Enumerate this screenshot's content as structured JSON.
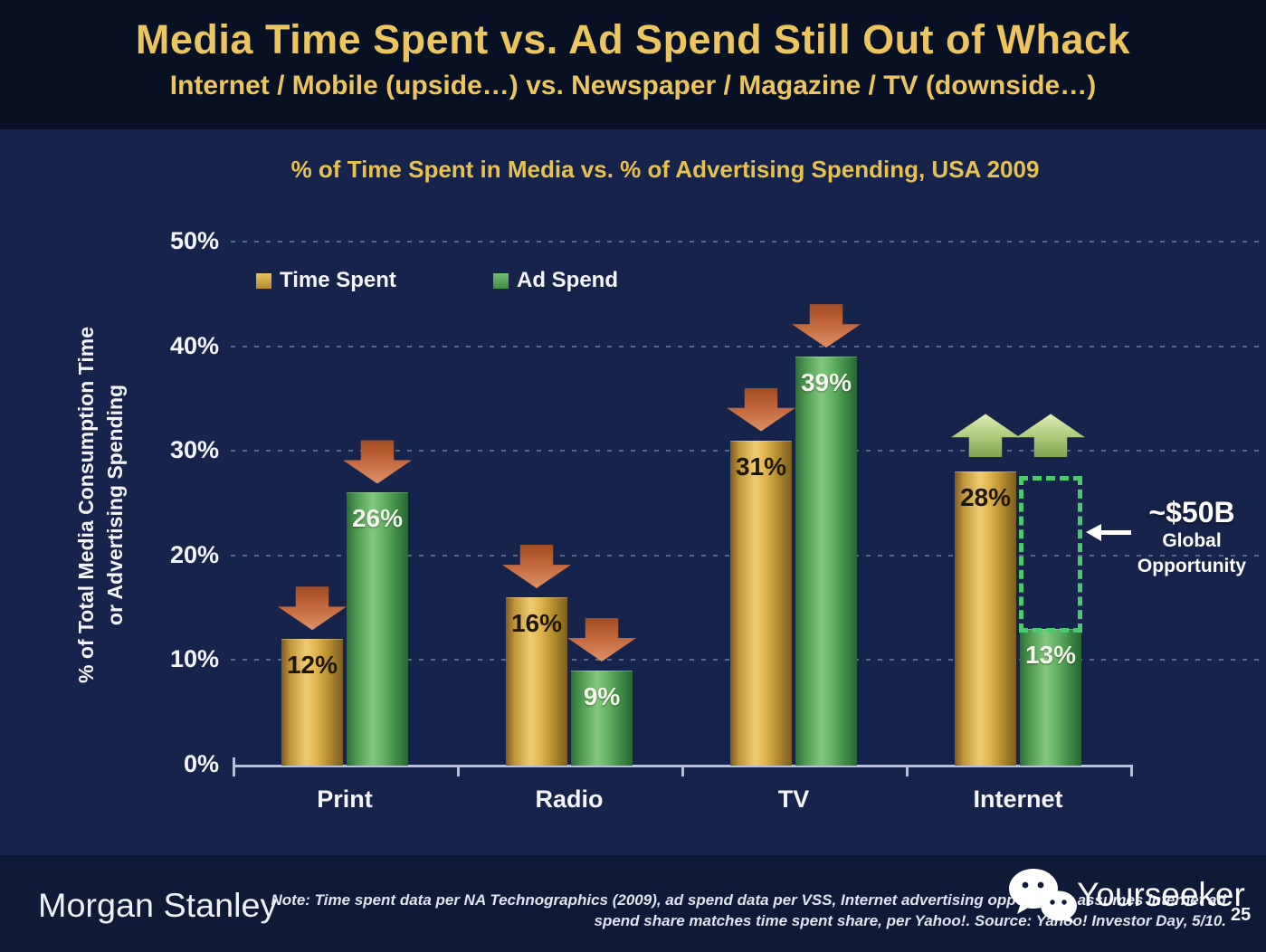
{
  "header": {
    "title": "Media Time Spent vs. Ad Spend Still Out of Whack",
    "subtitle": "Internet / Mobile (upside…) vs. Newspaper / Magazine / TV (downside…)",
    "title_color": "#ecc55e"
  },
  "chart": {
    "title": "% of Time Spent in Media vs. % of Advertising Spending, USA 2009",
    "y_axis_title_line1": "% of Total Media Consumption Time",
    "y_axis_title_line2": "or Advertising Spending",
    "legend": [
      {
        "label": "Time Spent",
        "color": "#d7a63e"
      },
      {
        "label": "Ad Spend",
        "color": "#55a65b"
      }
    ]
  },
  "chart_data": {
    "type": "bar",
    "title": "% of Time Spent in Media vs. % of Advertising Spending, USA 2009",
    "categories": [
      "Print",
      "Radio",
      "TV",
      "Internet"
    ],
    "series": [
      {
        "name": "Time Spent",
        "color": "#d7a63e",
        "values": [
          12,
          16,
          31,
          28
        ]
      },
      {
        "name": "Ad Spend",
        "color": "#55a65b",
        "values": [
          26,
          9,
          39,
          13
        ]
      }
    ],
    "value_suffix": "%",
    "ylabel": "% of Total Media Consumption Time or Advertising Spending",
    "xlabel": "",
    "ylim": [
      0,
      50
    ],
    "y_ticks": [
      "0%",
      "10%",
      "20%",
      "30%",
      "40%",
      "50%"
    ],
    "grid": "dotted horizontal",
    "legend_position": "top-left",
    "trend_arrows": [
      "down",
      "down",
      "down",
      "up"
    ],
    "arrow_colors": {
      "down": "#c2663a",
      "up": "#b5d083"
    }
  },
  "annotation": {
    "value": "~$50B",
    "line1": "Global",
    "line2": "Opportunity",
    "box": {
      "category_index": 3,
      "box_color": "#4cc96f"
    }
  },
  "footer": {
    "brand": "Morgan Stanley",
    "note_line1": "Note: Time spent data per NA Technographics (2009), ad spend data per VSS, Internet advertising opportunity assumes internet ad",
    "note_line2": "spend share matches time spent share, per Yahoo!. Source: Yahoo! Investor Day, 5/10.",
    "watermark": "Yourseeker",
    "page_number": "25"
  }
}
